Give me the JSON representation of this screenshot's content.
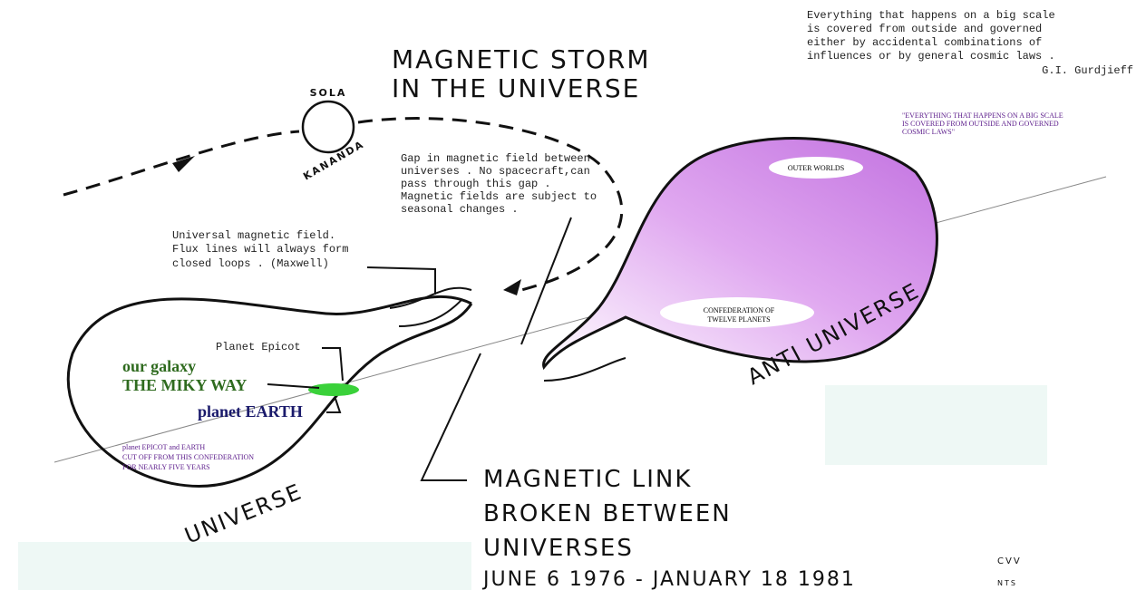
{
  "quote": {
    "lines": [
      "Everything that happens on a big scale",
      "is covered from outside and governed",
      "either by accidental combinations of",
      "influences or by general cosmic laws ."
    ],
    "author": "G.I. Gurdjieff"
  },
  "title": {
    "lines": [
      "MAGNETIC STORM",
      "IN THE UNIVERSE"
    ]
  },
  "sun": {
    "top": "SOLA",
    "bottom": "KANANDA"
  },
  "gap_note": {
    "lines": [
      "Gap in magnetic field between",
      "universes . No spacecraft,can",
      "pass through this gap .",
      "Magnetic fields are subject to",
      "seasonal changes ."
    ]
  },
  "field_note": {
    "lines": [
      "Universal magnetic field.",
      "Flux lines will always form",
      "closed loops . (Maxwell)"
    ]
  },
  "caps_quote": {
    "lines": [
      "\"EVERYTHING THAT HAPPENS ON A BIG SCALE",
      "IS COVERED FROM OUTSIDE AND GOVERNED",
      "COSMIC LAWS\""
    ]
  },
  "anti_universe": {
    "label": "ANTI UNIVERSE",
    "outer": "OUTER WORLDS",
    "confederation": [
      "CONFEDERATION OF",
      "TWELVE PLANETS"
    ]
  },
  "universe": {
    "label": "UNIVERSE",
    "epicot": "Planet Epicot",
    "galaxy": "our galaxy",
    "milky_way": "THE MIKY WAY",
    "earth": "planet EARTH",
    "cut_off": [
      "planet EPICOT and EARTH",
      "CUT OFF FROM THIS CONFEDERATION",
      "FOR NEARLY FIVE YEARS"
    ]
  },
  "link": {
    "lines": [
      "MAGNETIC LINK",
      "BROKEN BETWEEN",
      "UNIVERSES",
      "JUNE 6 1976 - JANUARY 18 1981"
    ]
  },
  "initials": [
    "CVV",
    "NTS"
  ]
}
